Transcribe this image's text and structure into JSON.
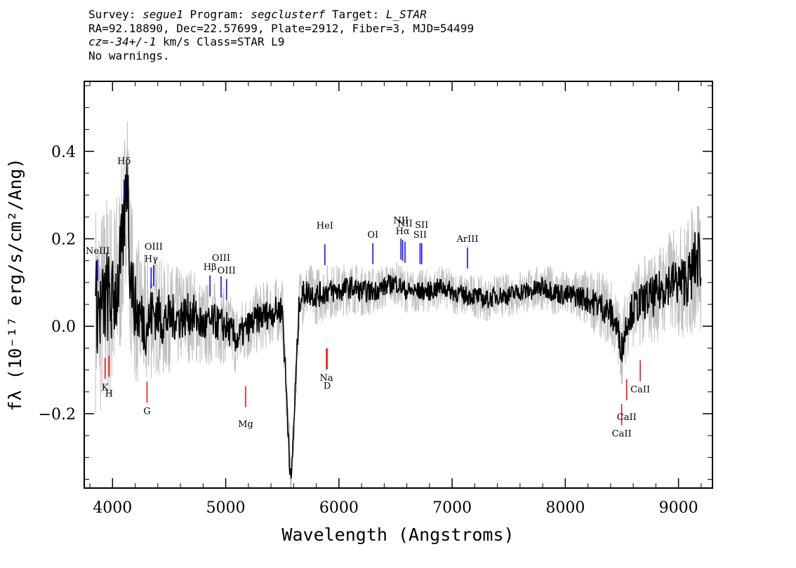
{
  "header": {
    "survey_label": "Survey:",
    "survey": "segue1",
    "program_label": "Program:",
    "program": "segclusterf",
    "target_label": "Target:",
    "target": "L_STAR",
    "line2": "RA=92.18890, Dec=22.57699, Plate=2912, Fiber=3, MJD=54499",
    "cz_label": "cz",
    "cz_value": "=-34+/-1",
    "cz_unit": "km/s Class=STAR L9",
    "warnings": "No warnings."
  },
  "chart_data": {
    "type": "line",
    "xlabel": "Wavelength (Angstroms)",
    "ylabel": "fλ (10⁻¹⁷ erg/s/cm²/Ang)",
    "xlim": [
      3750,
      9300
    ],
    "ylim": [
      -0.37,
      0.56
    ],
    "xticks": [
      4000,
      5000,
      6000,
      7000,
      8000,
      9000
    ],
    "xtick_labels": [
      "4000",
      "5000",
      "6000",
      "7000",
      "8000",
      "9000"
    ],
    "yticks": [
      -0.2,
      0.0,
      0.2,
      0.4
    ],
    "ytick_labels": [
      "−0.2",
      "0.0",
      "0.2",
      "0.4"
    ],
    "grid": false,
    "colors": {
      "flux": "#000000",
      "error": "#c0c0c0",
      "emission": "#0000ff",
      "absorption": "#ff0000"
    },
    "series": [
      {
        "role": "flux",
        "x": [
          3850,
          3900,
          3950,
          4000,
          4050,
          4101,
          4130,
          4150,
          4200,
          4250,
          4300,
          4350,
          4400,
          4450,
          4500,
          4600,
          4700,
          4800,
          4900,
          5000,
          5100,
          5200,
          5300,
          5400,
          5500,
          5577,
          5650,
          5700,
          5800,
          5900,
          6000,
          6100,
          6200,
          6300,
          6400,
          6500,
          6600,
          6700,
          6800,
          6900,
          7000,
          7100,
          7200,
          7300,
          7400,
          7500,
          7600,
          7700,
          7800,
          7900,
          8000,
          8100,
          8200,
          8300,
          8400,
          8450,
          8500,
          8550,
          8600,
          8650,
          8700,
          8800,
          8900,
          9000,
          9100,
          9150,
          9200
        ],
        "y": [
          0.05,
          0.03,
          0.07,
          0.05,
          0.1,
          0.22,
          0.38,
          0.15,
          0.04,
          0.02,
          0.0,
          0.03,
          0.03,
          0.01,
          0.02,
          0.02,
          0.03,
          0.0,
          0.01,
          0.0,
          -0.03,
          0.0,
          0.02,
          0.03,
          0.04,
          -0.37,
          0.06,
          0.08,
          0.07,
          0.08,
          0.08,
          0.09,
          0.08,
          0.08,
          0.09,
          0.1,
          0.08,
          0.08,
          0.08,
          0.09,
          0.08,
          0.07,
          0.07,
          0.06,
          0.07,
          0.07,
          0.08,
          0.08,
          0.09,
          0.08,
          0.07,
          0.07,
          0.06,
          0.05,
          0.03,
          0.0,
          -0.05,
          0.02,
          0.04,
          0.05,
          0.06,
          0.07,
          0.1,
          0.1,
          0.11,
          0.15,
          0.16
        ]
      }
    ],
    "error_band_halfwidth": {
      "x": [
        3850,
        4000,
        4200,
        4500,
        5000,
        5500,
        6000,
        6500,
        7000,
        7500,
        8000,
        8500,
        9000,
        9200
      ],
      "y": [
        0.2,
        0.2,
        0.14,
        0.1,
        0.07,
        0.06,
        0.05,
        0.04,
        0.04,
        0.04,
        0.045,
        0.07,
        0.1,
        0.14
      ]
    },
    "emission_lines": [
      {
        "label": "NeIII",
        "x": 3869
      },
      {
        "label": "Hδ",
        "x": 4102
      },
      {
        "label": "Hγ",
        "x": 4341
      },
      {
        "label": "OIII",
        "x": 4363
      },
      {
        "label": "Hβ",
        "x": 4861
      },
      {
        "label": "OIII",
        "x": 4959
      },
      {
        "label": "OIII",
        "x": 5007
      },
      {
        "label": "HeI",
        "x": 5876
      },
      {
        "label": "OI",
        "x": 6300
      },
      {
        "label": "NII",
        "x": 6548
      },
      {
        "label": "Hα",
        "x": 6563
      },
      {
        "label": "NII",
        "x": 6584
      },
      {
        "label": "SII",
        "x": 6717
      },
      {
        "label": "SII",
        "x": 6731
      },
      {
        "label": "ArIII",
        "x": 7136
      }
    ],
    "absorption_lines": [
      {
        "label": "K",
        "x": 3934
      },
      {
        "label": "H",
        "x": 3969
      },
      {
        "label": "G",
        "x": 4305
      },
      {
        "label": "Mg",
        "x": 5176
      },
      {
        "label": "Na",
        "x": 5890
      },
      {
        "label": "D",
        "x": 5896
      },
      {
        "label": "CaII",
        "x": 8498
      },
      {
        "label": "CaII",
        "x": 8542
      },
      {
        "label": "CaII",
        "x": 8662
      }
    ]
  }
}
